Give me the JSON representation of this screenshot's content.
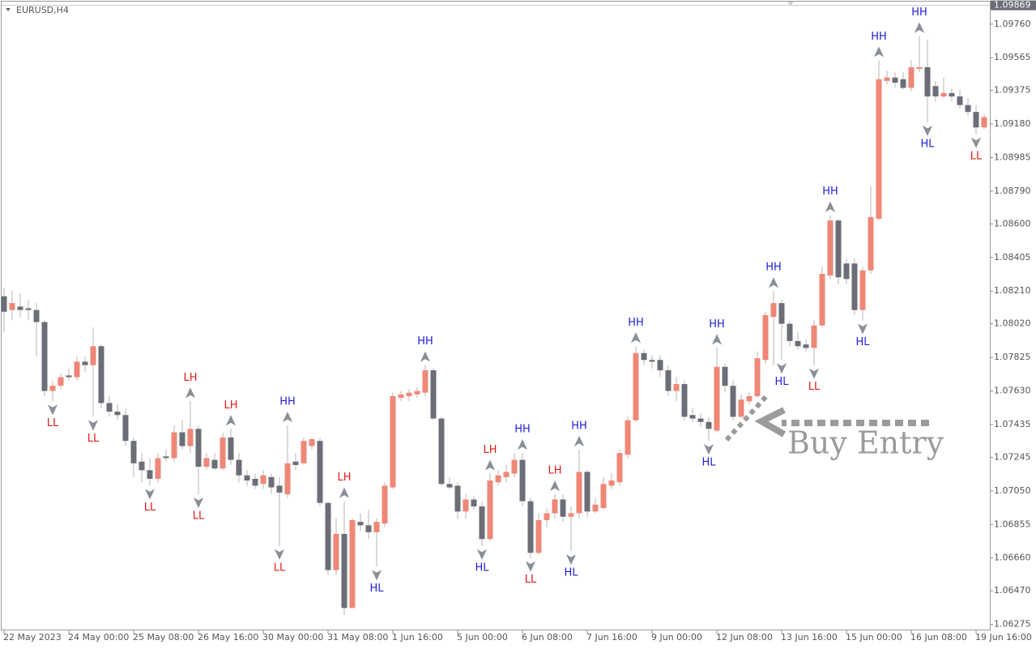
{
  "chart_data": {
    "type": "candlestick",
    "title": "EURUSD,H4",
    "annotation": "Buy Entry",
    "current_price": 1.09869,
    "up_color": "#ef8777",
    "down_color": "#6b6e76",
    "wick_color": "#b4b4b4",
    "swing_colors": {
      "HH": "#1f1fd6",
      "HL": "#1f1fd6",
      "LH": "#e01b1b",
      "LL": "#e01b1b"
    },
    "ylim": [
      1.0624,
      1.099
    ],
    "yticks": [
      {
        "value": 1.0976,
        "label": "1.09760"
      },
      1.09565,
      1.09375,
      {
        "value": 1.0918,
        "label": "1.09180"
      },
      1.08985,
      {
        "value": 1.0879,
        "label": "1.08790"
      },
      {
        "value": 1.086,
        "label": "1.08600"
      },
      1.08405,
      {
        "value": 1.0821,
        "label": "1.08210"
      },
      {
        "value": 1.0802,
        "label": "1.08020"
      },
      1.07825,
      {
        "value": 1.0763,
        "label": "1.07630"
      },
      1.07435,
      1.07245,
      {
        "value": 1.0705,
        "label": "1.07050"
      },
      1.06855,
      {
        "value": 1.0666,
        "label": "1.06660"
      },
      {
        "value": 1.0647,
        "label": "1.06470"
      },
      1.06275
    ],
    "categories": [
      "22 May 2023",
      null,
      null,
      null,
      null,
      null,
      null,
      null,
      "24 May 00:00",
      null,
      null,
      null,
      null,
      null,
      null,
      null,
      "25 May 08:00",
      null,
      null,
      null,
      null,
      null,
      null,
      null,
      "26 May 16:00",
      null,
      null,
      null,
      null,
      null,
      null,
      null,
      "30 May 00:00",
      null,
      null,
      null,
      null,
      null,
      null,
      null,
      "31 May 08:00",
      null,
      null,
      null,
      null,
      null,
      null,
      null,
      "1 Jun 16:00",
      null,
      null,
      null,
      null,
      null,
      null,
      null,
      "5 Jun 00:00",
      null,
      null,
      null,
      null,
      null,
      null,
      null,
      "6 Jun 08:00",
      null,
      null,
      null,
      null,
      null,
      null,
      null,
      "7 Jun 16:00",
      null,
      null,
      null,
      null,
      null,
      null,
      null,
      "9 Jun 00:00",
      null,
      null,
      null,
      null,
      null,
      null,
      null,
      "12 Jun 08:00",
      null,
      null,
      null,
      null,
      null,
      null,
      null,
      "13 Jun 16:00",
      null,
      null,
      null,
      null,
      null,
      null,
      null,
      "15 Jun 00:00",
      null,
      null,
      null,
      null,
      null,
      null,
      null,
      "16 Jun 08:00",
      null,
      null,
      null,
      null,
      null,
      null,
      null,
      "19 Jun 16:00",
      null
    ],
    "open": [
      1.0818,
      1.081,
      1.0812,
      1.0811,
      1.081,
      1.0803,
      1.0763,
      1.0766,
      1.0772,
      1.0771,
      1.078,
      1.0778,
      1.0789,
      1.0756,
      1.0751,
      1.0749,
      1.0734,
      1.0722,
      1.0717,
      1.0712,
      1.0725,
      1.0724,
      1.0739,
      1.0731,
      1.0741,
      1.0719,
      1.0723,
      1.0718,
      1.0736,
      1.0723,
      1.0714,
      1.0712,
      1.0709,
      1.0713,
      1.0708,
      1.0703,
      1.0722,
      1.0721,
      1.0731,
      1.0734,
      1.0698,
      1.0659,
      1.068,
      1.0637,
      1.0687,
      1.0685,
      1.0681,
      1.0686,
      1.0707,
      1.0759,
      1.076,
      1.0761,
      1.0762,
      1.0775,
      1.0747,
      1.0709,
      1.0708,
      1.0693,
      1.07,
      1.0696,
      1.0677,
      1.071,
      1.0713,
      1.0715,
      1.0723,
      1.0699,
      1.0669,
      1.0688,
      1.0692,
      1.07,
      1.069,
      1.0692,
      1.0716,
      1.0693,
      1.0695,
      1.0708,
      1.071,
      1.0726,
      1.0746,
      1.0785,
      1.0781,
      1.0781,
      1.0775,
      1.0763,
      1.0767,
      1.0749,
      1.0747,
      1.0745,
      1.074,
      1.0777,
      1.0766,
      1.0748,
      1.0757,
      1.076,
      1.0781,
      1.0806,
      1.0814,
      1.0802,
      1.0792,
      1.079,
      1.0788,
      1.0801,
      1.083,
      1.0862,
      1.0837,
      1.0837,
      1.081,
      1.0833,
      1.0863,
      1.0943,
      1.0945,
      1.0944,
      1.0939,
      1.095,
      1.0951,
      1.094,
      1.0934,
      1.0936,
      1.0934,
      1.0929,
      1.0925,
      1.0916
    ],
    "high": [
      1.0823,
      1.0821,
      1.082,
      1.0816,
      1.0814,
      1.0804,
      1.0769,
      1.0773,
      1.0776,
      1.0783,
      1.0783,
      1.08,
      1.079,
      1.076,
      1.0755,
      1.0753,
      1.0736,
      1.0727,
      1.0724,
      1.0727,
      1.0729,
      1.0743,
      1.0746,
      1.0757,
      1.0743,
      1.0727,
      1.0727,
      1.0739,
      1.0741,
      1.0727,
      1.0717,
      1.0715,
      1.0717,
      1.0715,
      1.0713,
      1.0743,
      1.0727,
      1.0736,
      1.0736,
      1.0736,
      1.0699,
      1.0689,
      1.0699,
      1.0689,
      1.0692,
      1.0694,
      1.0689,
      1.071,
      1.0762,
      1.0763,
      1.0764,
      1.0765,
      1.0778,
      1.0776,
      1.0748,
      1.0713,
      1.071,
      1.0703,
      1.0702,
      1.0699,
      1.0715,
      1.0717,
      1.072,
      1.0727,
      1.0727,
      1.0701,
      1.0692,
      1.0695,
      1.0703,
      1.0703,
      1.0696,
      1.0729,
      1.0717,
      1.0701,
      1.0713,
      1.0715,
      1.0729,
      1.0748,
      1.0789,
      1.0787,
      1.0784,
      1.0784,
      1.0778,
      1.0771,
      1.0769,
      1.0753,
      1.075,
      1.0748,
      1.0788,
      1.0779,
      1.0769,
      1.0761,
      1.0762,
      1.0786,
      1.0809,
      1.0821,
      1.0816,
      1.0804,
      1.0797,
      1.0793,
      1.0804,
      1.0835,
      1.0865,
      1.0863,
      1.084,
      1.084,
      1.0835,
      1.0882,
      1.0955,
      1.0949,
      1.0948,
      1.0948,
      1.0955,
      1.0969,
      1.0967,
      1.0943,
      1.0945,
      1.0939,
      1.0938,
      1.0933,
      1.0929,
      1.0924
    ],
    "low": [
      1.0797,
      1.0804,
      1.0806,
      1.0804,
      1.0783,
      1.076,
      1.0757,
      1.0764,
      1.0769,
      1.0769,
      1.0774,
      1.0748,
      1.0753,
      1.0748,
      1.0746,
      1.0731,
      1.0713,
      1.071,
      1.0708,
      1.071,
      1.0722,
      1.0722,
      1.0729,
      1.0727,
      1.0703,
      1.0717,
      1.0717,
      1.0717,
      1.072,
      1.071,
      1.0708,
      1.0706,
      1.0706,
      1.0703,
      1.0673,
      1.0701,
      1.0717,
      1.072,
      1.0729,
      1.0696,
      1.0656,
      1.0656,
      1.0633,
      1.0637,
      1.0682,
      1.0677,
      1.0661,
      1.0684,
      1.0706,
      1.0757,
      1.0757,
      1.0759,
      1.076,
      1.0746,
      1.0708,
      1.0706,
      1.0689,
      1.0689,
      1.0694,
      1.0673,
      1.0676,
      1.0708,
      1.071,
      1.0713,
      1.0696,
      1.0666,
      1.0668,
      1.0684,
      1.0689,
      1.0687,
      1.067,
      1.0689,
      1.069,
      1.0692,
      1.0694,
      1.0706,
      1.0708,
      1.0724,
      1.0745,
      1.0778,
      1.0776,
      1.0771,
      1.076,
      1.0757,
      1.0746,
      1.0745,
      1.0742,
      1.0734,
      1.0739,
      1.0762,
      1.0746,
      1.0747,
      1.0755,
      1.0759,
      1.0779,
      1.0778,
      1.0781,
      1.0789,
      1.0787,
      1.0786,
      1.0778,
      1.08,
      1.0828,
      1.0825,
      1.0825,
      1.0807,
      1.0804,
      1.0831,
      1.0862,
      1.0941,
      1.0939,
      1.0938,
      1.0937,
      1.0948,
      1.0919,
      1.0931,
      1.0933,
      1.0931,
      1.0927,
      1.0923,
      1.0912,
      1.0915
    ],
    "close": [
      1.0809,
      1.0814,
      1.081,
      1.081,
      1.0803,
      1.0763,
      1.0766,
      1.0771,
      1.0771,
      1.078,
      1.0778,
      1.0789,
      1.0756,
      1.0751,
      1.0749,
      1.0734,
      1.0721,
      1.0717,
      1.0712,
      1.0724,
      1.0724,
      1.0739,
      1.0731,
      1.0741,
      1.0719,
      1.0724,
      1.0718,
      1.0736,
      1.0723,
      1.0714,
      1.0711,
      1.0708,
      1.0714,
      1.0707,
      1.0704,
      1.0721,
      1.072,
      1.0734,
      1.0735,
      1.0698,
      1.0659,
      1.068,
      1.0637,
      1.0688,
      1.0685,
      1.0681,
      1.0687,
      1.0708,
      1.076,
      1.0761,
      1.0762,
      1.0763,
      1.0775,
      1.0747,
      1.0709,
      1.0707,
      1.0693,
      1.07,
      1.0696,
      1.0677,
      1.0711,
      1.0714,
      1.0716,
      1.0723,
      1.0699,
      1.0669,
      1.0688,
      1.0692,
      1.07,
      1.069,
      1.0692,
      1.0716,
      1.0693,
      1.0697,
      1.0709,
      1.0711,
      1.0727,
      1.0746,
      1.0785,
      1.0781,
      1.078,
      1.0775,
      1.0763,
      1.0767,
      1.0748,
      1.0747,
      1.0745,
      1.0741,
      1.0777,
      1.0766,
      1.0748,
      1.0758,
      1.076,
      1.0782,
      1.0807,
      1.0814,
      1.0802,
      1.0792,
      1.0789,
      1.0788,
      1.0801,
      1.0831,
      1.0862,
      1.0829,
      1.0828,
      1.081,
      1.0833,
      1.0864,
      1.0944,
      1.0945,
      1.0942,
      1.0939,
      1.0951,
      1.0951,
      1.0934,
      1.0934,
      1.0936,
      1.0934,
      1.0929,
      1.0925,
      1.0916,
      1.0922
    ],
    "swing_labels": [
      null,
      null,
      null,
      null,
      null,
      null,
      "LL",
      null,
      null,
      null,
      null,
      "LL",
      null,
      null,
      null,
      null,
      null,
      null,
      "LL",
      null,
      null,
      null,
      null,
      "LH",
      "LL",
      null,
      null,
      null,
      "LH",
      null,
      null,
      null,
      null,
      null,
      "LL",
      "HH",
      null,
      null,
      null,
      null,
      null,
      null,
      "LH",
      null,
      null,
      null,
      "HL",
      null,
      null,
      null,
      null,
      null,
      "HH",
      null,
      null,
      null,
      null,
      null,
      null,
      "HL",
      "LH",
      null,
      null,
      null,
      "HH",
      "LL",
      null,
      null,
      "LH",
      null,
      "HL",
      "HH",
      null,
      null,
      null,
      null,
      null,
      null,
      "HH",
      null,
      null,
      null,
      null,
      null,
      null,
      null,
      null,
      "HL",
      "HH",
      null,
      null,
      null,
      null,
      null,
      null,
      "HH",
      "HL",
      null,
      null,
      null,
      "LL",
      null,
      "HH",
      null,
      null,
      null,
      "HL",
      null,
      "HH",
      null,
      null,
      null,
      null,
      "HH",
      "HL",
      null,
      null,
      null,
      null,
      null,
      "LL",
      null
    ]
  }
}
